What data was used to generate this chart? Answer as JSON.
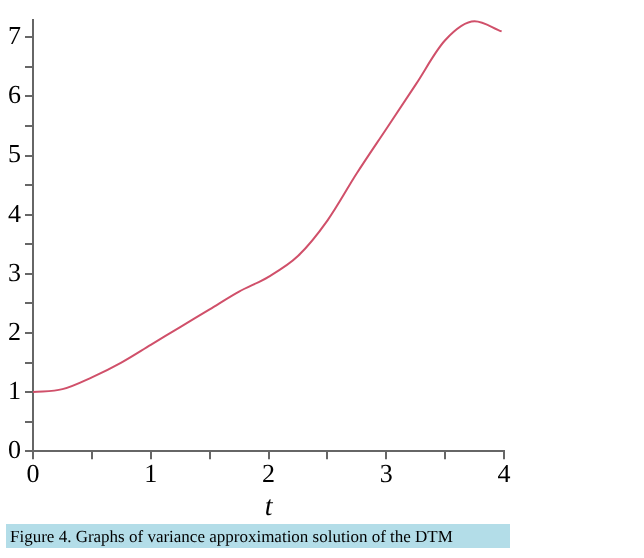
{
  "chart_data": {
    "type": "line",
    "xlabel": "t",
    "x": [
      0,
      0.25,
      0.5,
      0.75,
      1,
      1.25,
      1.5,
      1.75,
      2,
      2.25,
      2.5,
      2.75,
      3,
      3.25,
      3.5,
      3.75,
      3.98
    ],
    "series": [
      {
        "color": "#d0506a",
        "values": [
          1,
          1.05,
          1.25,
          1.5,
          1.8,
          2.1,
          2.4,
          2.7,
          2.95,
          3.3,
          3.9,
          4.7,
          5.45,
          6.2,
          6.95,
          7.27,
          7.1
        ]
      }
    ],
    "xlim": [
      0,
      4
    ],
    "xticks": [
      0,
      {
        "value": 0.5,
        "label": null
      },
      1,
      {
        "value": 1.5,
        "label": null
      },
      2,
      {
        "value": 2.5,
        "label": null
      },
      3,
      {
        "value": 3.5,
        "label": null
      },
      4
    ],
    "ylim": [
      0,
      7.3
    ],
    "yticks": [
      0,
      {
        "value": 0.5,
        "label": null
      },
      1,
      {
        "value": 1.5,
        "label": null
      },
      2,
      {
        "value": 2.5,
        "label": null
      },
      3,
      {
        "value": 3.5,
        "label": null
      },
      4,
      {
        "value": 4.5,
        "label": null
      },
      5,
      {
        "value": 5.5,
        "label": null
      },
      6,
      {
        "value": 6.5,
        "label": null
      },
      7
    ],
    "grid": false,
    "legend": false,
    "marker": "none",
    "line_style": "solid",
    "annotations": [
      "Figure 4. Graphs of variance approximation solution of the DTM"
    ]
  }
}
